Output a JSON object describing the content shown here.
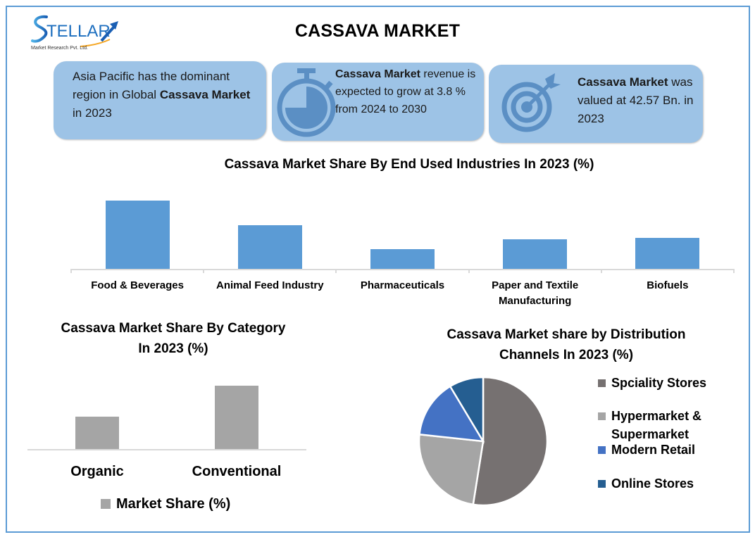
{
  "header": {
    "logo_text": "STELLAR",
    "logo_subtext": "Market Research Pvt. Ltd.",
    "title": "CASSAVA MARKET"
  },
  "cards": [
    {
      "icon": "none",
      "segments": [
        {
          "text": "Asia Pacific has the dominant region in Global ",
          "bold": false
        },
        {
          "text": "Cassava Market",
          "bold": true
        },
        {
          "text": " in 2023",
          "bold": false
        }
      ]
    },
    {
      "icon": "stopwatch-icon",
      "segments": [
        {
          "text": "Cassava Market",
          "bold": true
        },
        {
          "text": " revenue is expected to grow at 3.8 % from 2024 to 2030",
          "bold": false
        }
      ]
    },
    {
      "icon": "target-icon",
      "segments": [
        {
          "text": "Cassava Market",
          "bold": true
        },
        {
          "text": " was valued at 42.57 Bn. in 2023",
          "bold": false
        }
      ]
    }
  ],
  "colors": {
    "frame": "#5b9bd5",
    "card_bg": "#9dc3e6",
    "card_icon": "#5b8fc4",
    "bar_blue": "#5b9bd5",
    "bar_gray": "#a5a5a5",
    "axis": "#d9d9d9"
  },
  "chart_data": [
    {
      "type": "bar",
      "title": "Cassava Market Share By End Used Industries In 2023 (%)",
      "categories": [
        "Food & Beverages",
        "Animal Feed Industry",
        "Pharmaceuticals",
        "Paper and Textile Manufacturing",
        "Biofuels"
      ],
      "category_lines": [
        [
          "Food & Beverages"
        ],
        [
          "Animal Feed Industry"
        ],
        [
          "Pharmaceuticals"
        ],
        [
          "Paper and Textile",
          "Manufacturing"
        ],
        [
          "Biofuels"
        ]
      ],
      "values": [
        35,
        22.5,
        10,
        15,
        16
      ],
      "color": "#5b9bd5",
      "xlabel": "",
      "ylabel": "",
      "ylim": [
        0,
        35
      ],
      "grid": false,
      "legend": null
    },
    {
      "type": "bar",
      "title": "Cassava Market Share By Category In 2023 (%)",
      "title_lines": [
        "Cassava Market Share By Category",
        "In 2023 (%)"
      ],
      "categories": [
        "Organic",
        "Conventional"
      ],
      "series": [
        {
          "name": "Market Share (%)",
          "values": [
            34,
            66
          ],
          "color": "#a5a5a5"
        }
      ],
      "xlabel": "",
      "ylabel": "",
      "ylim": [
        0,
        66
      ],
      "grid": false,
      "legend": {
        "position": "bottom",
        "label": "Market Share (%)"
      }
    },
    {
      "type": "pie",
      "title": "Cassava Market share by Distribution Channels In 2023 (%)",
      "title_lines": [
        "Cassava Market share by Distribution",
        "Channels In 2023 (%)"
      ],
      "labels": [
        "Spciality Stores",
        "Hypermarket & Supermarket",
        "Modern Retail",
        "Online Stores"
      ],
      "legend_lines": [
        [
          "Spciality Stores"
        ],
        [
          "Hypermarket &",
          "Supermarket"
        ],
        [
          "Modern Retail"
        ],
        [
          "Online Stores"
        ]
      ],
      "values": [
        52.5,
        24.2,
        14.7,
        8.6
      ],
      "colors": [
        "#767171",
        "#a5a5a5",
        "#4472c4",
        "#255e91"
      ],
      "start_angle": "12 o'clock, clockwise",
      "legend": {
        "position": "right"
      }
    }
  ]
}
